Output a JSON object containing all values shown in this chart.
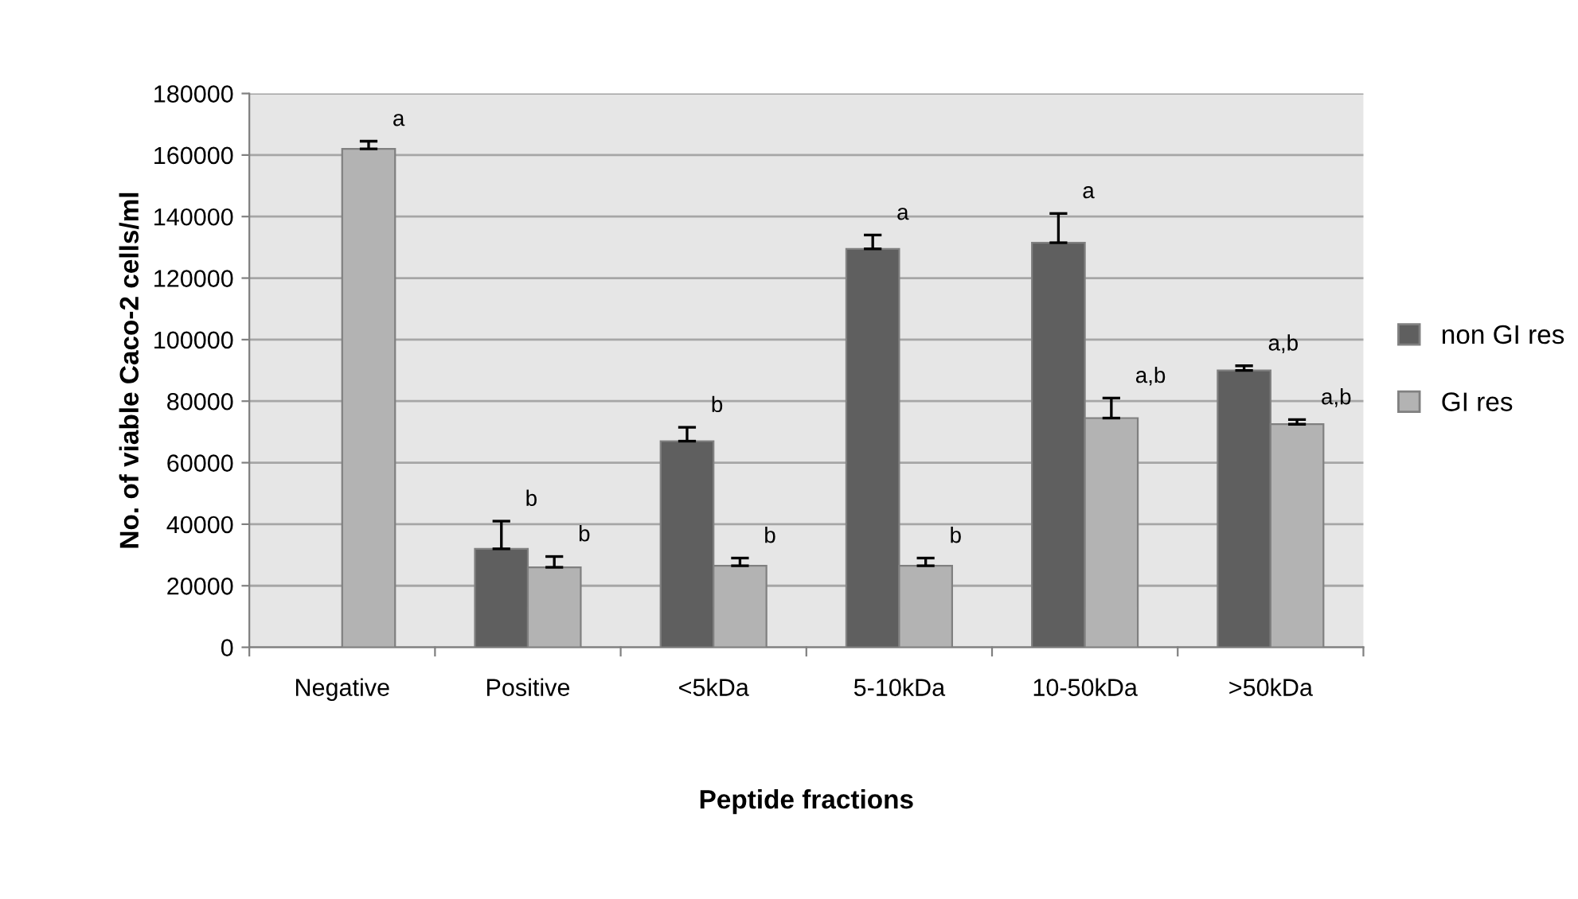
{
  "chart_data": {
    "type": "bar",
    "xlabel": "Peptide fractions",
    "ylabel": "No. of viable Caco-2 cells/ml",
    "categories": [
      "Negative",
      "Positive",
      "<5kDa",
      "5-10kDa",
      "10-50kDa",
      ">50kDa"
    ],
    "series": [
      {
        "name": "non GI res",
        "color": "#5f5f5f",
        "values": [
          null,
          32000,
          67000,
          129500,
          131500,
          90000
        ],
        "errors": [
          null,
          [
            32000,
            41000
          ],
          [
            67000,
            71500
          ],
          [
            129500,
            134000
          ],
          [
            131500,
            141000
          ],
          [
            90000,
            91500
          ]
        ],
        "value_labels": [
          null,
          "b",
          "b",
          "a",
          "a",
          "a,b"
        ]
      },
      {
        "name": "GI res",
        "color": "#b3b3b3",
        "values": [
          162000,
          26000,
          26500,
          26500,
          74500,
          72500
        ],
        "errors": [
          [
            162000,
            164500
          ],
          [
            26000,
            29500
          ],
          [
            26500,
            29000
          ],
          [
            26500,
            29000
          ],
          [
            74500,
            81000
          ],
          [
            72500,
            74000
          ]
        ],
        "value_labels": [
          "a",
          "b",
          "b",
          "b",
          "a,b",
          "a,b"
        ]
      }
    ],
    "ylim": [
      0,
      180000
    ],
    "yticks": [
      0,
      20000,
      40000,
      60000,
      80000,
      100000,
      120000,
      140000,
      160000,
      180000
    ],
    "grid": "y",
    "legend": "right"
  }
}
